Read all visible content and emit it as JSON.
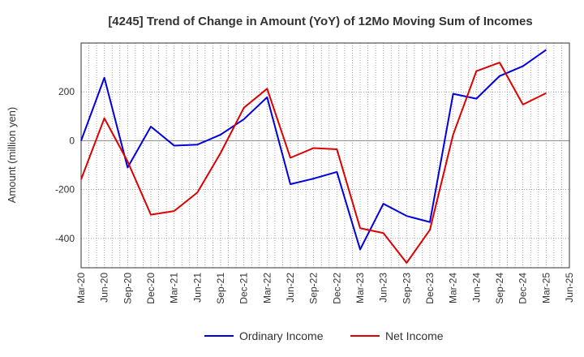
{
  "chart_data": {
    "type": "line",
    "title": "[4245]  Trend of Change in Amount (YoY) of 12Mo Moving Sum of Incomes",
    "ylabel": "Amount (million yen)",
    "xlabel": "",
    "ylim": [
      -520,
      400
    ],
    "yticks": [
      -400,
      -200,
      0,
      200
    ],
    "grid": true,
    "legend_position": "bottom-center",
    "categories": [
      "Mar-20",
      "Jun-20",
      "Sep-20",
      "Dec-20",
      "Mar-21",
      "Jun-21",
      "Sep-21",
      "Dec-21",
      "Mar-22",
      "Jun-22",
      "Sep-22",
      "Dec-22",
      "Mar-23",
      "Jun-23",
      "Sep-23",
      "Dec-23",
      "Mar-24",
      "Jun-24",
      "Sep-24",
      "Dec-24",
      "Mar-25",
      "Jun-25"
    ],
    "series": [
      {
        "name": "Ordinary Income",
        "color": "#0000dd",
        "values": [
          0,
          258,
          -110,
          58,
          -20,
          -16,
          25,
          88,
          178,
          -178,
          -155,
          -128,
          -445,
          -258,
          -308,
          -333,
          192,
          172,
          265,
          305,
          372,
          null
        ]
      },
      {
        "name": "Net Income",
        "color": "#dd0000",
        "values": [
          -158,
          92,
          -85,
          -303,
          -288,
          -212,
          -50,
          135,
          213,
          -70,
          -30,
          -35,
          -358,
          -378,
          -500,
          -365,
          25,
          285,
          320,
          148,
          195,
          null
        ]
      }
    ]
  }
}
